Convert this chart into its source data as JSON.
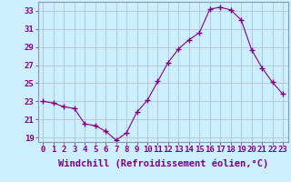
{
  "x": [
    0,
    1,
    2,
    3,
    4,
    5,
    6,
    7,
    8,
    9,
    10,
    11,
    12,
    13,
    14,
    15,
    16,
    17,
    18,
    19,
    20,
    21,
    22,
    23
  ],
  "y": [
    23.0,
    22.8,
    22.4,
    22.2,
    20.5,
    20.3,
    19.7,
    18.7,
    19.5,
    21.8,
    23.1,
    25.2,
    27.3,
    28.8,
    29.8,
    30.6,
    33.2,
    33.4,
    33.1,
    32.0,
    28.7,
    26.7,
    25.1,
    23.8
  ],
  "line_color": "#800080",
  "marker": "+",
  "marker_size": 4,
  "bg_color": "#cceeff",
  "grid_color": "#aabbcc",
  "tick_color": "#800080",
  "label_color": "#800080",
  "xlabel": "Windchill (Refroidissement éolien,°C)",
  "ylim": [
    18.5,
    34.0
  ],
  "yticks": [
    19,
    21,
    23,
    25,
    27,
    29,
    31,
    33
  ],
  "xticks": [
    0,
    1,
    2,
    3,
    4,
    5,
    6,
    7,
    8,
    9,
    10,
    11,
    12,
    13,
    14,
    15,
    16,
    17,
    18,
    19,
    20,
    21,
    22,
    23
  ],
  "font_size": 6.5,
  "xlabel_font_size": 7.5,
  "marker_color": "#800080"
}
